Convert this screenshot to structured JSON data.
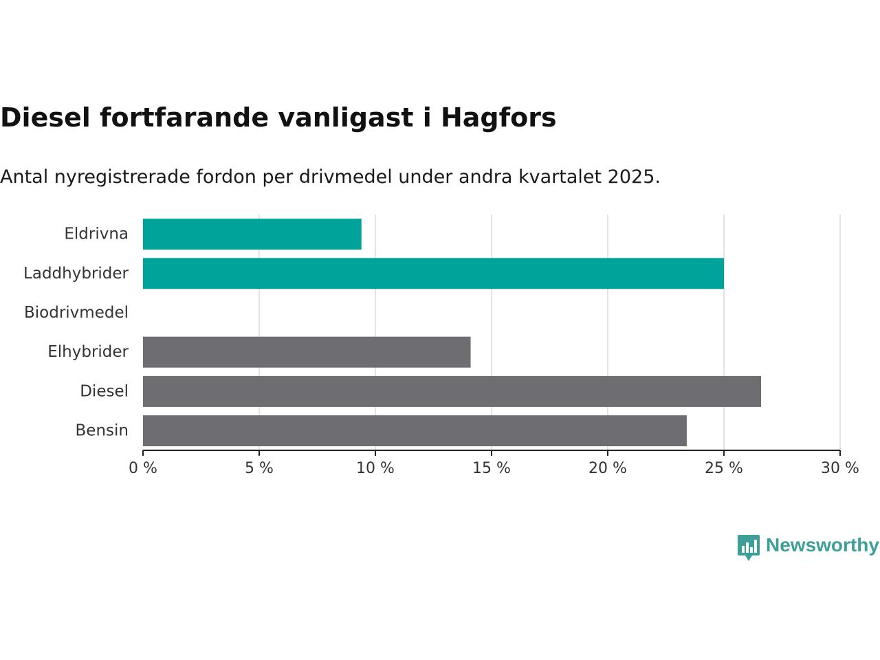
{
  "title": "Diesel fortfarande vanligast i Hagfors",
  "subtitle": "Antal nyregistrerade fordon per drivmedel under andra kvartalet 2025.",
  "brand": {
    "name": "Newsworthy",
    "icon": "bar-chart-speech-bubble-icon",
    "color": "#3d9f98"
  },
  "chart_data": {
    "type": "bar",
    "orientation": "horizontal",
    "categories": [
      "Eldrivna",
      "Laddhybrider",
      "Biodrivmedel",
      "Elhybrider",
      "Diesel",
      "Bensin"
    ],
    "values": [
      9.4,
      25.0,
      0,
      14.1,
      26.6,
      23.4
    ],
    "colors": [
      "#00a39a",
      "#00a39a",
      "#00a39a",
      "#6e6d72",
      "#6e6d72",
      "#6e6d72"
    ],
    "xlim": [
      0,
      30
    ],
    "xticks": [
      0,
      5,
      10,
      15,
      20,
      25,
      30
    ],
    "xtick_labels": [
      "0 %",
      "5 %",
      "10 %",
      "15 %",
      "20 %",
      "25 %",
      "30 %"
    ],
    "grid": true,
    "legend": "none"
  }
}
